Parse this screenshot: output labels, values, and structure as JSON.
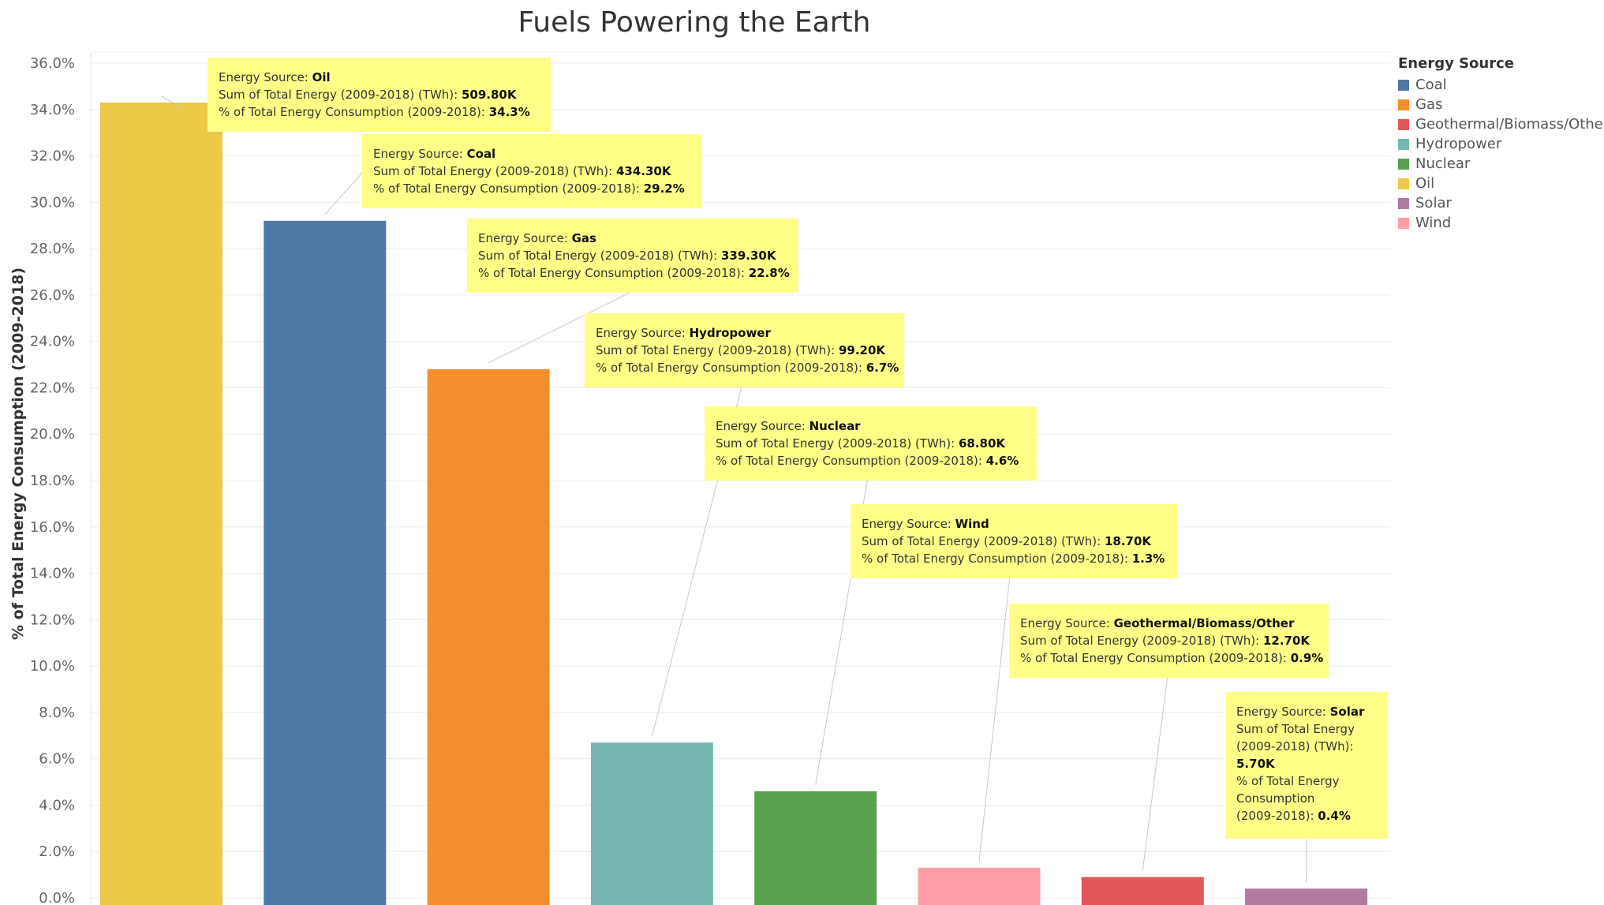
{
  "chart_data": {
    "type": "bar",
    "title": "Fuels Powering the Earth",
    "ylabel": "% of Total Energy Consumption (2009-2018)",
    "xlabel": "",
    "ylim": [
      0,
      36
    ],
    "yticks": [
      "0.0%",
      "2.0%",
      "4.0%",
      "6.0%",
      "8.0%",
      "10.0%",
      "12.0%",
      "14.0%",
      "16.0%",
      "18.0%",
      "20.0%",
      "22.0%",
      "24.0%",
      "26.0%",
      "28.0%",
      "30.0%",
      "32.0%",
      "34.0%",
      "36.0%"
    ],
    "grid": true,
    "legend_position": "right",
    "categories": [
      "Oil",
      "Coal",
      "Gas",
      "Hydropower",
      "Nuclear",
      "Wind",
      "Geothermal/Biomass/Other",
      "Solar"
    ],
    "values": [
      34.3,
      29.2,
      22.8,
      6.7,
      4.6,
      1.3,
      0.9,
      0.4
    ],
    "total_energy_twh": [
      "509.80K",
      "434.30K",
      "339.30K",
      "99.20K",
      "68.80K",
      "18.70K",
      "12.70K",
      "5.70K"
    ],
    "percent_labels": [
      "34.3%",
      "29.2%",
      "22.8%",
      "6.7%",
      "4.6%",
      "1.3%",
      "0.9%",
      "0.4%"
    ],
    "colors": {
      "Coal": "#4e79a7",
      "Gas": "#f28e2b",
      "Geothermal/Biomass/Other": "#e15759",
      "Hydropower": "#76b7b2",
      "Nuclear": "#59a14f",
      "Oil": "#edc948",
      "Solar": "#b07aa1",
      "Wind": "#ff9da7"
    },
    "tooltip_labels": {
      "source": "Energy Source: ",
      "sum": "Sum of Total Energy (2009-2018) (TWh): ",
      "pct": "% of Total Energy Consumption (2009-2018): ",
      "sum_wrapped": [
        "Sum of Total Energy",
        "(2009-2018) (TWh):"
      ],
      "pct_wrapped": [
        "% of Total Energy",
        "Consumption",
        "(2009-2018): "
      ]
    },
    "tooltip_background": "#ffff88",
    "legend": {
      "title": "Energy Source",
      "items": [
        "Coal",
        "Gas",
        "Geothermal/Biomass/Other",
        "Hydropower",
        "Nuclear",
        "Oil",
        "Solar",
        "Wind"
      ]
    }
  }
}
